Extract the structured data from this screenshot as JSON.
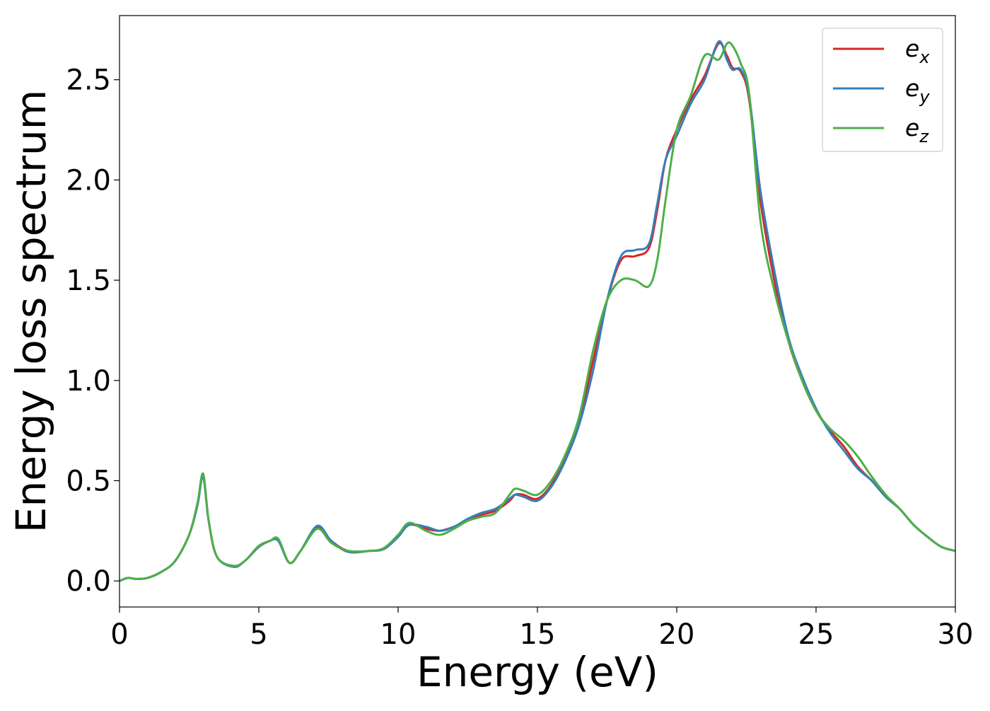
{
  "chart_data": {
    "type": "line",
    "title": "",
    "xlabel": "Energy (eV)",
    "ylabel": "Energy loss spectrum",
    "xlim": [
      0,
      30
    ],
    "ylim": [
      -0.13,
      2.82
    ],
    "xticks": [
      0,
      5,
      10,
      15,
      20,
      25,
      30
    ],
    "xtick_labels": [
      "0",
      "5",
      "10",
      "15",
      "20",
      "25",
      "30"
    ],
    "yticks": [
      0.0,
      0.5,
      1.0,
      1.5,
      2.0,
      2.5
    ],
    "ytick_labels": [
      "0.0",
      "0.5",
      "1.0",
      "1.5",
      "2.0",
      "2.5"
    ],
    "grid": false,
    "legend_position": "top-right",
    "series": [
      {
        "name": "e",
        "subscript": "x",
        "color": "#d62728",
        "x": [
          0,
          0.3,
          0.6,
          1,
          1.5,
          2,
          2.5,
          2.8,
          3.0,
          3.2,
          3.5,
          4.1,
          4.5,
          5,
          5.4,
          5.7,
          6.1,
          6.5,
          7.1,
          7.6,
          8.2,
          9,
          9.5,
          10,
          10.4,
          11,
          11.5,
          12,
          12.5,
          13,
          13.5,
          14,
          14.2,
          14.5,
          15,
          15.5,
          16,
          16.5,
          17,
          17.5,
          18,
          18.5,
          19,
          19.3,
          19.6,
          20,
          20.5,
          21,
          21.5,
          21.8,
          22,
          22.3,
          22.6,
          23,
          23.5,
          24,
          24.5,
          25,
          25.5,
          26,
          26.5,
          27,
          27.5,
          28,
          28.5,
          29,
          29.5,
          30
        ],
        "y": [
          0.0,
          0.015,
          0.01,
          0.015,
          0.045,
          0.1,
          0.23,
          0.38,
          0.53,
          0.3,
          0.12,
          0.075,
          0.1,
          0.17,
          0.2,
          0.205,
          0.09,
          0.15,
          0.27,
          0.2,
          0.15,
          0.15,
          0.16,
          0.22,
          0.28,
          0.26,
          0.25,
          0.27,
          0.3,
          0.33,
          0.35,
          0.4,
          0.43,
          0.43,
          0.41,
          0.48,
          0.62,
          0.8,
          1.1,
          1.4,
          1.6,
          1.62,
          1.66,
          1.85,
          2.1,
          2.25,
          2.4,
          2.52,
          2.68,
          2.62,
          2.56,
          2.54,
          2.4,
          1.9,
          1.5,
          1.2,
          1.0,
          0.85,
          0.75,
          0.67,
          0.57,
          0.5,
          0.42,
          0.36,
          0.28,
          0.22,
          0.17,
          0.15
        ]
      },
      {
        "name": "e",
        "subscript": "y",
        "color": "#377eb8",
        "x": [
          0,
          0.3,
          0.6,
          1,
          1.5,
          2,
          2.5,
          2.8,
          3.0,
          3.2,
          3.5,
          4.1,
          4.5,
          5,
          5.4,
          5.7,
          6.1,
          6.5,
          7.1,
          7.6,
          8.2,
          9,
          9.5,
          10,
          10.4,
          11,
          11.5,
          12,
          12.5,
          13,
          13.5,
          14,
          14.2,
          14.5,
          15,
          15.5,
          16,
          16.5,
          17,
          17.5,
          18,
          18.5,
          19,
          19.3,
          19.6,
          20,
          20.5,
          21,
          21.5,
          21.8,
          22,
          22.3,
          22.6,
          23,
          23.5,
          24,
          24.5,
          25,
          25.5,
          26,
          26.5,
          27,
          27.5,
          28,
          28.5,
          29,
          29.5,
          30
        ],
        "y": [
          0.0,
          0.015,
          0.01,
          0.015,
          0.045,
          0.1,
          0.23,
          0.38,
          0.52,
          0.3,
          0.12,
          0.07,
          0.1,
          0.17,
          0.2,
          0.2,
          0.09,
          0.15,
          0.275,
          0.2,
          0.145,
          0.15,
          0.16,
          0.22,
          0.28,
          0.27,
          0.25,
          0.27,
          0.31,
          0.34,
          0.36,
          0.41,
          0.43,
          0.42,
          0.4,
          0.47,
          0.6,
          0.78,
          1.05,
          1.4,
          1.62,
          1.65,
          1.68,
          1.88,
          2.1,
          2.22,
          2.38,
          2.5,
          2.69,
          2.6,
          2.55,
          2.55,
          2.42,
          1.95,
          1.55,
          1.22,
          1.02,
          0.86,
          0.74,
          0.65,
          0.56,
          0.5,
          0.42,
          0.36,
          0.28,
          0.22,
          0.17,
          0.15
        ]
      },
      {
        "name": "e",
        "subscript": "z",
        "color": "#4daf4a",
        "x": [
          0,
          0.3,
          0.6,
          1,
          1.5,
          2,
          2.5,
          2.8,
          3.0,
          3.2,
          3.5,
          4.1,
          4.5,
          5,
          5.4,
          5.7,
          6.1,
          6.5,
          7.1,
          7.6,
          8.2,
          9,
          9.5,
          10,
          10.4,
          11,
          11.5,
          12,
          12.5,
          13,
          13.5,
          14,
          14.2,
          14.5,
          15,
          15.5,
          16,
          16.5,
          17,
          17.5,
          18,
          18.5,
          19,
          19.3,
          19.6,
          20,
          20.5,
          21,
          21.5,
          21.8,
          22,
          22.3,
          22.6,
          23,
          23.5,
          24,
          24.5,
          25,
          25.5,
          26,
          26.5,
          27,
          27.5,
          28,
          28.5,
          29,
          29.5,
          30
        ],
        "y": [
          0.0,
          0.015,
          0.01,
          0.015,
          0.045,
          0.1,
          0.23,
          0.39,
          0.535,
          0.3,
          0.12,
          0.075,
          0.1,
          0.175,
          0.2,
          0.21,
          0.09,
          0.15,
          0.26,
          0.19,
          0.15,
          0.15,
          0.165,
          0.23,
          0.29,
          0.25,
          0.23,
          0.26,
          0.3,
          0.32,
          0.34,
          0.43,
          0.46,
          0.45,
          0.43,
          0.5,
          0.63,
          0.82,
          1.15,
          1.4,
          1.5,
          1.5,
          1.47,
          1.6,
          1.9,
          2.25,
          2.42,
          2.62,
          2.6,
          2.68,
          2.67,
          2.58,
          2.43,
          1.8,
          1.45,
          1.2,
          1.0,
          0.85,
          0.76,
          0.7,
          0.62,
          0.52,
          0.43,
          0.36,
          0.28,
          0.22,
          0.17,
          0.15
        ]
      }
    ]
  }
}
